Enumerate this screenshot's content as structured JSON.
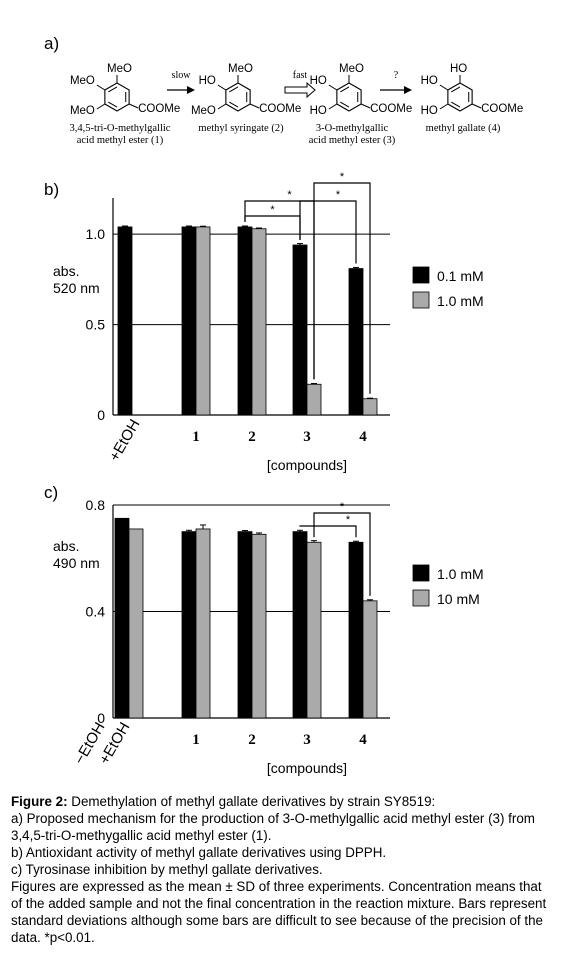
{
  "scheme": {
    "label": "a)",
    "compounds": [
      {
        "groups": [
          "MeO",
          "MeO",
          "MeO"
        ],
        "ester": "COOMe",
        "name_lines": [
          "3,4,5-tri-O-methylgallic",
          "acid methyl ester (1)"
        ]
      },
      {
        "groups": [
          "MeO",
          "HO",
          "MeO"
        ],
        "ester": "COOMe",
        "name_lines": [
          "methyl syringate (2)"
        ]
      },
      {
        "groups": [
          "MeO",
          "HO",
          "HO"
        ],
        "ester": "COOMe",
        "name_lines": [
          "3-O-methylgallic",
          "acid methyl ester (3)"
        ]
      },
      {
        "groups": [
          "HO",
          "HO",
          "HO"
        ],
        "ester": "COOMe",
        "name_lines": [
          "methyl gallate (4)"
        ]
      }
    ],
    "arrows": [
      "slow",
      "fast",
      "?"
    ]
  },
  "chart_data": [
    {
      "panel": "b)",
      "type": "bar",
      "categories": [
        "+EtOH",
        "1",
        "2",
        "3",
        "4"
      ],
      "series": [
        {
          "name": "0.1 mM",
          "color": "#000000",
          "values": [
            1.04,
            1.04,
            1.04,
            0.94,
            0.81
          ],
          "errors": [
            0.005,
            0.005,
            0.005,
            0.008,
            0.006
          ]
        },
        {
          "name": "1.0 mM",
          "color": "#aaaaaa",
          "values": [
            null,
            1.04,
            1.03,
            0.17,
            0.09
          ],
          "errors": [
            0,
            0.004,
            0.004,
            0.004,
            0.003
          ]
        }
      ],
      "yticks": [
        "0",
        "0.5",
        "1.0"
      ],
      "ylim": [
        0,
        1.2
      ],
      "ylabel": [
        "abs.",
        "520 nm"
      ],
      "xlabel": "[compounds]",
      "legend_position": "right",
      "significance": [
        {
          "from": "2",
          "to": "3",
          "series_from": 0,
          "series_to": 0,
          "label": "*"
        },
        {
          "from": "2",
          "to": "3",
          "series_from": 0,
          "series_to": 1,
          "label": "*"
        },
        {
          "from": "3",
          "to": "4",
          "series_from": 0,
          "series_to": 0,
          "label": "*"
        },
        {
          "from": "3",
          "to": "4",
          "series_from": 1,
          "series_to": 1,
          "label": "*"
        }
      ]
    },
    {
      "panel": "c)",
      "type": "bar",
      "categories": [
        "−EtOH",
        "+EtOH",
        "1",
        "2",
        "3",
        "4"
      ],
      "series": [
        {
          "name": "1.0 mM",
          "color": "#000000",
          "values": [
            0.75,
            null,
            0.7,
            0.7,
            0.7,
            0.66
          ],
          "errors": [
            0,
            0,
            0.005,
            0.004,
            0.005,
            0.004
          ]
        },
        {
          "name": "10 mM",
          "color": "#aaaaaa",
          "values": [
            0.71,
            null,
            0.71,
            0.69,
            0.66,
            0.44
          ],
          "errors": [
            0,
            0,
            0.015,
            0.005,
            0.006,
            0.004
          ]
        }
      ],
      "yticks": [
        "0",
        "0.4",
        "0.8"
      ],
      "ylim": [
        0,
        0.8
      ],
      "ylabel": [
        "abs.",
        "490 nm"
      ],
      "xlabel": "[compounds]",
      "legend_position": "right",
      "significance": [
        {
          "from": "3",
          "to": "4",
          "series_from": 0,
          "series_to": 0,
          "label": "*"
        },
        {
          "from": "3",
          "to": "4",
          "series_from": 1,
          "series_to": 1,
          "label": "*"
        }
      ]
    }
  ],
  "caption": {
    "title": "Figure 2:",
    "title_text": " Demethylation of methyl gallate derivatives by strain SY8519:",
    "line_a": "a) Proposed mechanism for the production of 3-O-methylgallic acid methyl ester (3) from 3,4,5-tri-O-methygallic acid methyl ester (1).",
    "line_b": "b) Antioxidant activity of methyl gallate derivatives using DPPH.",
    "line_c": "c) Tyrosinase inhibition by methyl gallate derivatives.",
    "notes": "Figures are expressed as the mean ± SD of three experiments. Concentration means that of the added sample and not the final concentration in the reaction mixture. Bars represent standard deviations although some bars are difficult to see because of the precision of the data. *p<0.01."
  }
}
